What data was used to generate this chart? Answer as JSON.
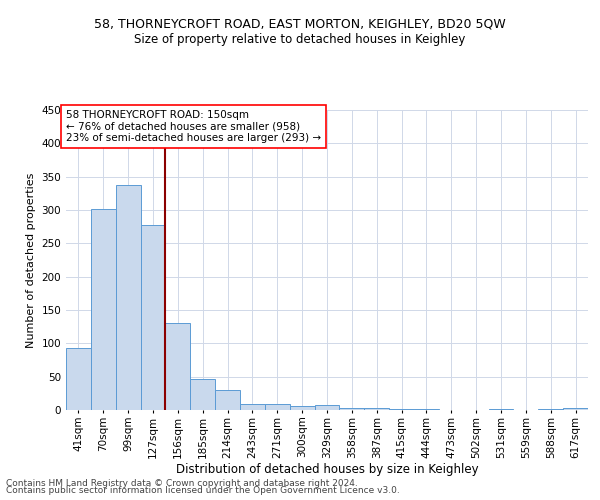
{
  "title1": "58, THORNEYCROFT ROAD, EAST MORTON, KEIGHLEY, BD20 5QW",
  "title2": "Size of property relative to detached houses in Keighley",
  "xlabel": "Distribution of detached houses by size in Keighley",
  "ylabel": "Number of detached properties",
  "footer1": "Contains HM Land Registry data © Crown copyright and database right 2024.",
  "footer2": "Contains public sector information licensed under the Open Government Licence v3.0.",
  "annotation_line1": "58 THORNEYCROFT ROAD: 150sqm",
  "annotation_line2": "← 76% of detached houses are smaller (958)",
  "annotation_line3": "23% of semi-detached houses are larger (293) →",
  "bar_color": "#c9d9ed",
  "bar_edge_color": "#5b9bd5",
  "vline_color": "#8b0000",
  "categories": [
    "41sqm",
    "70sqm",
    "99sqm",
    "127sqm",
    "156sqm",
    "185sqm",
    "214sqm",
    "243sqm",
    "271sqm",
    "300sqm",
    "329sqm",
    "358sqm",
    "387sqm",
    "415sqm",
    "444sqm",
    "473sqm",
    "502sqm",
    "531sqm",
    "559sqm",
    "588sqm",
    "617sqm"
  ],
  "values": [
    93,
    302,
    338,
    278,
    131,
    46,
    30,
    9,
    9,
    6,
    7,
    3,
    3,
    2,
    1,
    0,
    0,
    2,
    0,
    1,
    3
  ],
  "ylim": [
    0,
    450
  ],
  "yticks": [
    0,
    50,
    100,
    150,
    200,
    250,
    300,
    350,
    400,
    450
  ],
  "vline_x": 3.5,
  "bg_color": "#ffffff",
  "grid_color": "#d0d8e8",
  "title1_fontsize": 9,
  "title2_fontsize": 8.5,
  "xlabel_fontsize": 8.5,
  "ylabel_fontsize": 8,
  "tick_fontsize": 7.5,
  "annot_fontsize": 7.5,
  "footer_fontsize": 6.5
}
